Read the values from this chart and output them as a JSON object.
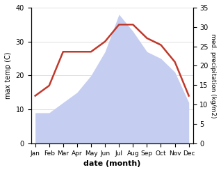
{
  "months": [
    "Jan",
    "Feb",
    "Mar",
    "Apr",
    "May",
    "Jun",
    "Jul",
    "Aug",
    "Sep",
    "Oct",
    "Nov",
    "Dec"
  ],
  "max_temp": [
    14,
    17,
    27,
    27,
    27,
    30,
    35,
    35,
    31,
    29,
    24,
    14
  ],
  "precipitation": [
    9,
    9,
    12,
    15,
    20,
    27,
    38,
    33,
    27,
    25,
    21,
    12
  ],
  "temp_color": "#c0392b",
  "precip_fill_color": "#c5cdf0",
  "ylabel_left": "max temp (C)",
  "ylabel_right": "med. precipitation (kg/m2)",
  "xlabel": "date (month)",
  "ylim_left": [
    0,
    40
  ],
  "ylim_right": [
    0,
    35
  ],
  "yticks_left": [
    0,
    10,
    20,
    30,
    40
  ],
  "yticks_right": [
    0,
    5,
    10,
    15,
    20,
    25,
    30,
    35
  ],
  "background_color": "#ffffff"
}
